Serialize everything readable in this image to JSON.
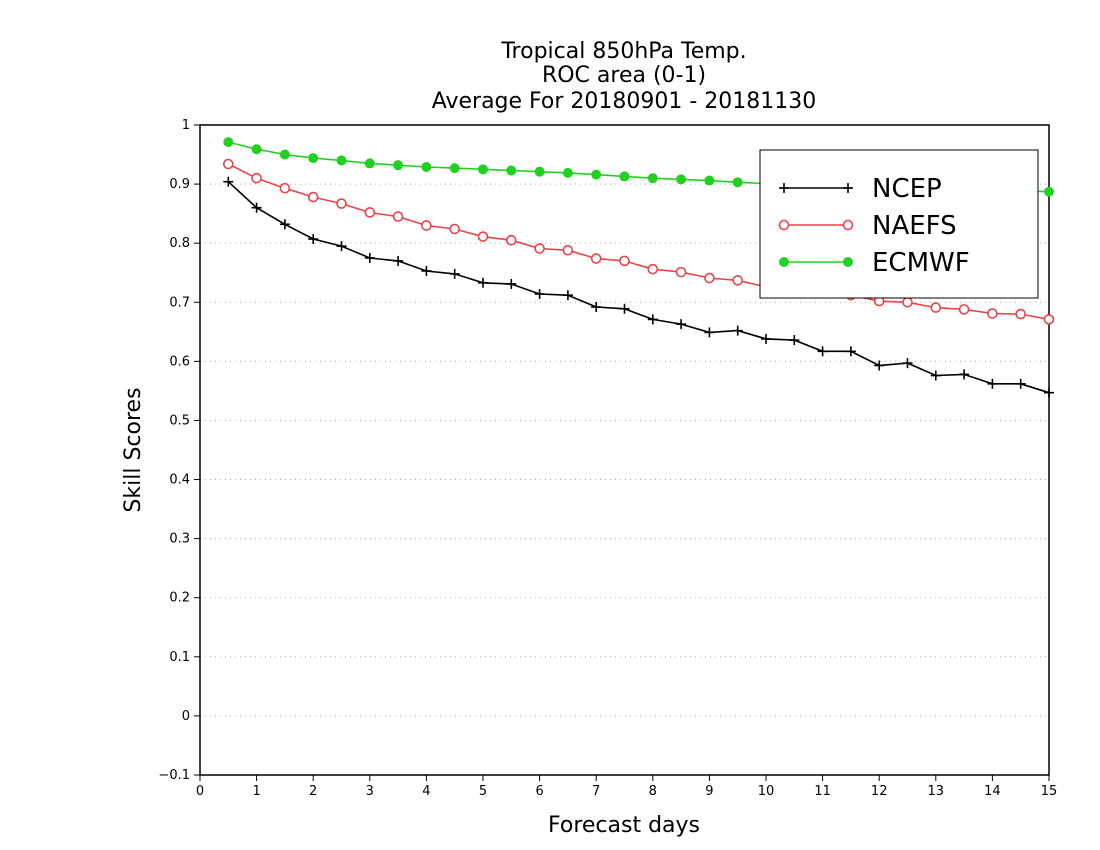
{
  "chart_data": {
    "type": "line",
    "title": [
      "Tropical 850hPa Temp.",
      "ROC area (0-1)",
      "Average For 20180901 - 20181130"
    ],
    "xlabel": "Forecast days",
    "ylabel": "Skill Scores",
    "xlim": [
      0,
      15
    ],
    "ylim": [
      -0.1,
      1
    ],
    "xticks": [
      "0",
      "1",
      "2",
      "3",
      "4",
      "5",
      "6",
      "7",
      "8",
      "9",
      "10",
      "11",
      "12",
      "13",
      "14",
      "15"
    ],
    "yticks": [
      "−0.1",
      "0",
      "0.1",
      "0.2",
      "0.3",
      "0.4",
      "0.5",
      "0.6",
      "0.7",
      "0.8",
      "0.9",
      "1"
    ],
    "grid": "horizontal-dotted",
    "legend_position": "top-right",
    "x": [
      0.5,
      1,
      1.5,
      2,
      2.5,
      3,
      3.5,
      4,
      4.5,
      5,
      5.5,
      6,
      6.5,
      7,
      7.5,
      8,
      8.5,
      9,
      9.5,
      10,
      10.5,
      11,
      11.5,
      12,
      12.5,
      13,
      13.5,
      14,
      14.5,
      15
    ],
    "series": [
      {
        "name": "NCEP",
        "color": "#000000",
        "marker": "plus",
        "values": [
          0.904,
          0.86,
          0.832,
          0.807,
          0.795,
          0.775,
          0.77,
          0.753,
          0.748,
          0.733,
          0.731,
          0.714,
          0.712,
          0.692,
          0.689,
          0.671,
          0.663,
          0.649,
          0.652,
          0.638,
          0.636,
          0.617,
          0.617,
          0.593,
          0.597,
          0.576,
          0.578,
          0.562,
          0.562,
          0.547
        ]
      },
      {
        "name": "NAEFS",
        "color": "#e8454a",
        "marker": "open-circle",
        "values": [
          0.934,
          0.91,
          0.893,
          0.878,
          0.867,
          0.852,
          0.845,
          0.83,
          0.824,
          0.811,
          0.805,
          0.791,
          0.788,
          0.774,
          0.77,
          0.756,
          0.751,
          0.741,
          0.737,
          0.726,
          0.722,
          0.716,
          0.712,
          0.702,
          0.7,
          0.691,
          0.688,
          0.681,
          0.68,
          0.671
        ]
      },
      {
        "name": "ECMWF",
        "color": "#22d022",
        "marker": "filled-circle",
        "values": [
          0.971,
          0.959,
          0.95,
          0.944,
          0.94,
          0.935,
          0.932,
          0.929,
          0.927,
          0.925,
          0.923,
          0.921,
          0.919,
          0.916,
          0.913,
          0.91,
          0.908,
          0.906,
          0.903,
          0.901,
          0.899,
          0.897,
          0.896,
          0.894,
          0.893,
          0.892,
          0.891,
          0.89,
          0.889,
          0.887
        ]
      }
    ]
  }
}
